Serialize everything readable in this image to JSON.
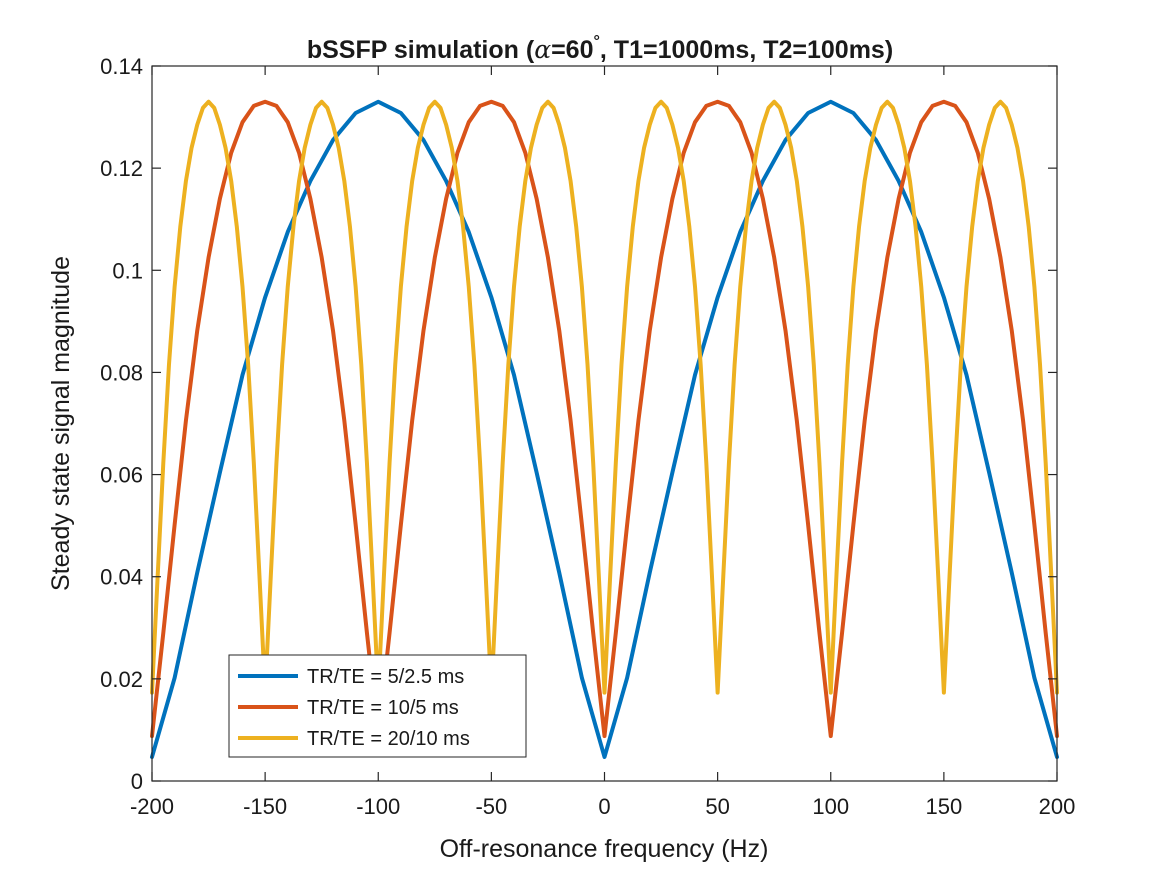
{
  "chart_data": {
    "type": "line",
    "title": "bSSFP simulation (",
    "title_alpha": "α",
    "title_mid": "=60",
    "title_degree": "°",
    "title_end": ", T1=1000ms, T2=100ms)",
    "xlabel": "Off-resonance frequency (Hz)",
    "ylabel": "Steady state signal magnitude",
    "xlim": [
      -200,
      200
    ],
    "ylim": [
      0,
      0.14
    ],
    "xticks": [
      -200,
      -150,
      -100,
      -50,
      0,
      50,
      100,
      150,
      200
    ],
    "xtick_labels": [
      "-200",
      "-150",
      "-100",
      "-50",
      "0",
      "50",
      "100",
      "150",
      "200"
    ],
    "yticks": [
      0,
      0.02,
      0.04,
      0.06,
      0.08,
      0.1,
      0.12,
      0.14
    ],
    "ytick_labels": [
      "0",
      "0.02",
      "0.04",
      "0.06",
      "0.08",
      "0.1",
      "0.12",
      "0.14"
    ],
    "grid": false,
    "legend_position": "bottom-left",
    "series": [
      {
        "name": "TR/TE = 5/2.5 ms",
        "color": "#0072BD",
        "x": [
          -200,
          -190,
          -180,
          -170,
          -160,
          -150,
          -140,
          -130,
          -120,
          -110,
          -100,
          -90,
          -80,
          -70,
          -60,
          -50,
          -40,
          -30,
          -20,
          -10,
          0,
          10,
          20,
          30,
          40,
          50,
          60,
          70,
          80,
          90,
          100,
          110,
          120,
          130,
          140,
          150,
          160,
          170,
          180,
          190,
          200
        ],
        "y": [
          0.0047,
          0.0202,
          0.0408,
          0.0604,
          0.0795,
          0.0947,
          0.1075,
          0.1175,
          0.1255,
          0.1308,
          0.133,
          0.1308,
          0.1255,
          0.1175,
          0.1075,
          0.0947,
          0.0795,
          0.0604,
          0.0408,
          0.0202,
          0.0047,
          0.0202,
          0.0408,
          0.0604,
          0.0795,
          0.0947,
          0.1075,
          0.1175,
          0.1255,
          0.1308,
          0.133,
          0.1308,
          0.1255,
          0.1175,
          0.1075,
          0.0947,
          0.0795,
          0.0604,
          0.0408,
          0.0202,
          0.0047
        ]
      },
      {
        "name": "TR/TE = 10/5 ms",
        "color": "#D95319",
        "x": [
          -200,
          -195,
          -190,
          -185,
          -180,
          -175,
          -170,
          -165,
          -160,
          -155,
          -150,
          -145,
          -140,
          -135,
          -130,
          -125,
          -120,
          -115,
          -110,
          -105,
          -100,
          -95,
          -90,
          -85,
          -80,
          -75,
          -70,
          -65,
          -60,
          -55,
          -50,
          -45,
          -40,
          -35,
          -30,
          -25,
          -20,
          -15,
          -10,
          -5,
          0,
          5,
          10,
          15,
          20,
          25,
          30,
          35,
          40,
          45,
          50,
          55,
          60,
          65,
          70,
          75,
          80,
          85,
          90,
          95,
          100,
          105,
          110,
          115,
          120,
          125,
          130,
          135,
          140,
          145,
          150,
          155,
          160,
          165,
          170,
          175,
          180,
          185,
          190,
          195,
          200
        ],
        "y": [
          0.0088,
          0.029,
          0.0502,
          0.0706,
          0.0882,
          0.1025,
          0.114,
          0.123,
          0.129,
          0.1322,
          0.133,
          0.1322,
          0.129,
          0.123,
          0.114,
          0.1025,
          0.0882,
          0.0706,
          0.0502,
          0.029,
          0.0088,
          0.029,
          0.0502,
          0.0706,
          0.0882,
          0.1025,
          0.114,
          0.123,
          0.129,
          0.1322,
          0.133,
          0.1322,
          0.129,
          0.123,
          0.114,
          0.1025,
          0.0882,
          0.0706,
          0.0502,
          0.029,
          0.0088,
          0.029,
          0.0502,
          0.0706,
          0.0882,
          0.1025,
          0.114,
          0.123,
          0.129,
          0.1322,
          0.133,
          0.1322,
          0.129,
          0.123,
          0.114,
          0.1025,
          0.0882,
          0.0706,
          0.0502,
          0.029,
          0.0088,
          0.029,
          0.0502,
          0.0706,
          0.0882,
          0.1025,
          0.114,
          0.123,
          0.129,
          0.1322,
          0.133,
          0.1322,
          0.129,
          0.123,
          0.114,
          0.1025,
          0.0882,
          0.0706,
          0.0502,
          0.029,
          0.0088
        ]
      },
      {
        "name": "TR/TE = 20/10 ms",
        "color": "#EDB120",
        "x": [
          -200,
          -197.5,
          -195,
          -192.5,
          -190,
          -187.5,
          -185,
          -182.5,
          -180,
          -177.5,
          -175,
          -172.5,
          -170,
          -167.5,
          -165,
          -162.5,
          -160,
          -157.5,
          -155,
          -152.5,
          -150,
          -147.5,
          -145,
          -142.5,
          -140,
          -137.5,
          -135,
          -132.5,
          -130,
          -127.5,
          -125,
          -122.5,
          -120,
          -117.5,
          -115,
          -112.5,
          -110,
          -107.5,
          -105,
          -102.5,
          -100,
          -97.5,
          -95,
          -92.5,
          -90,
          -87.5,
          -85,
          -82.5,
          -80,
          -77.5,
          -75,
          -72.5,
          -70,
          -67.5,
          -65,
          -62.5,
          -60,
          -57.5,
          -55,
          -52.5,
          -50,
          -47.5,
          -45,
          -42.5,
          -40,
          -37.5,
          -35,
          -32.5,
          -30,
          -27.5,
          -25,
          -22.5,
          -20,
          -17.5,
          -15,
          -12.5,
          -10,
          -7.5,
          -5,
          -2.5,
          0,
          2.5,
          5,
          7.5,
          10,
          12.5,
          15,
          17.5,
          20,
          22.5,
          25,
          27.5,
          30,
          32.5,
          35,
          37.5,
          40,
          42.5,
          45,
          47.5,
          50,
          52.5,
          55,
          57.5,
          60,
          62.5,
          65,
          67.5,
          70,
          72.5,
          75,
          77.5,
          80,
          82.5,
          85,
          87.5,
          90,
          92.5,
          95,
          97.5,
          100,
          102.5,
          105,
          107.5,
          110,
          112.5,
          115,
          117.5,
          120,
          122.5,
          125,
          127.5,
          130,
          132.5,
          135,
          137.5,
          140,
          142.5,
          145,
          147.5,
          150,
          152.5,
          155,
          157.5,
          160,
          162.5,
          165,
          167.5,
          170,
          172.5,
          175,
          177.5,
          180,
          182.5,
          185,
          187.5,
          190,
          192.5,
          195,
          197.5,
          200
        ],
        "y": [
          0.0173,
          0.0401,
          0.0623,
          0.0815,
          0.0968,
          0.1085,
          0.1175,
          0.124,
          0.1285,
          0.1318,
          0.133,
          0.1318,
          0.1285,
          0.124,
          0.1175,
          0.1085,
          0.0968,
          0.0815,
          0.0623,
          0.0401,
          0.0173,
          0.0401,
          0.0623,
          0.0815,
          0.0968,
          0.1085,
          0.1175,
          0.124,
          0.1285,
          0.1318,
          0.133,
          0.1318,
          0.1285,
          0.124,
          0.1175,
          0.1085,
          0.0968,
          0.0815,
          0.0623,
          0.0401,
          0.0173,
          0.0401,
          0.0623,
          0.0815,
          0.0968,
          0.1085,
          0.1175,
          0.124,
          0.1285,
          0.1318,
          0.133,
          0.1318,
          0.1285,
          0.124,
          0.1175,
          0.1085,
          0.0968,
          0.0815,
          0.0623,
          0.0401,
          0.0173,
          0.0401,
          0.0623,
          0.0815,
          0.0968,
          0.1085,
          0.1175,
          0.124,
          0.1285,
          0.1318,
          0.133,
          0.1318,
          0.1285,
          0.124,
          0.1175,
          0.1085,
          0.0968,
          0.0815,
          0.0623,
          0.0401,
          0.0173,
          0.0401,
          0.0623,
          0.0815,
          0.0968,
          0.1085,
          0.1175,
          0.124,
          0.1285,
          0.1318,
          0.133,
          0.1318,
          0.1285,
          0.124,
          0.1175,
          0.1085,
          0.0968,
          0.0815,
          0.0623,
          0.0401,
          0.0173,
          0.0401,
          0.0623,
          0.0815,
          0.0968,
          0.1085,
          0.1175,
          0.124,
          0.1285,
          0.1318,
          0.133,
          0.1318,
          0.1285,
          0.124,
          0.1175,
          0.1085,
          0.0968,
          0.0815,
          0.0623,
          0.0401,
          0.0173,
          0.0401,
          0.0623,
          0.0815,
          0.0968,
          0.1085,
          0.1175,
          0.124,
          0.1285,
          0.1318,
          0.133,
          0.1318,
          0.1285,
          0.124,
          0.1175,
          0.1085,
          0.0968,
          0.0815,
          0.0623,
          0.0401,
          0.0173,
          0.0401,
          0.0623,
          0.0815,
          0.0968,
          0.1085,
          0.1175,
          0.124,
          0.1285,
          0.1318,
          0.133,
          0.1318,
          0.1285,
          0.124,
          0.1175,
          0.1085,
          0.0968,
          0.0815,
          0.0623,
          0.0401,
          0.0173
        ]
      }
    ]
  }
}
